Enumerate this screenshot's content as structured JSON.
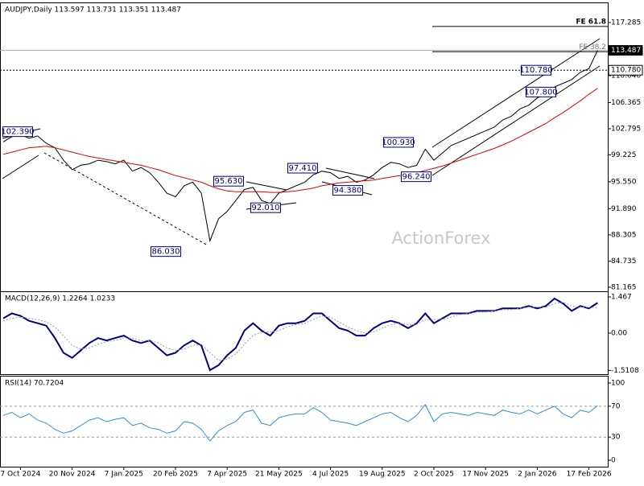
{
  "chart_data": [
    {
      "type": "line",
      "title": "AUDJPY,Daily 113.597 113.731 113.351 113.487",
      "watermark": "ActionForex",
      "ylim": [
        80.61,
        120.03
      ],
      "yticks": [
        117.285,
        {
          "value": 110.04,
          "label": "110.040"
        },
        106.365,
        102.795,
        99.225,
        {
          "value": 95.55,
          "label": "95.550"
        },
        {
          "value": 91.89,
          "label": "91.890"
        },
        88.305,
        84.735,
        81.165
      ],
      "price_labels": [
        {
          "value": 113.487,
          "label": "113.487",
          "line": "solid",
          "fill": "#000000"
        },
        {
          "value": 110.78,
          "label": "110.780",
          "line": "dashed",
          "fill": "#ffffff"
        }
      ],
      "levels": [
        {
          "value": 116.75,
          "label": "FE 61.8"
        },
        {
          "value": 113.3,
          "label": "FE 38.2"
        }
      ],
      "annotations": [
        {
          "value": 102.39,
          "label": "102.390"
        },
        {
          "value": 86.03,
          "label": "86.030"
        },
        {
          "value": 95.63,
          "label": "95.630"
        },
        {
          "value": 92.01,
          "label": "92.010"
        },
        {
          "value": 97.41,
          "label": "97.410"
        },
        {
          "value": 94.38,
          "label": "94.380"
        },
        {
          "value": 100.93,
          "label": "100.930"
        },
        {
          "value": 96.24,
          "label": "96.240"
        },
        {
          "value": 110.78,
          "label": "110.780"
        },
        {
          "value": 107.8,
          "label": "107.800"
        }
      ],
      "series": [
        {
          "color": "#000000",
          "width": 1,
          "values": [
            101.0,
            101.7,
            102.0,
            101.5,
            101.8,
            100.8,
            100.2,
            98.5,
            97.2,
            97.8,
            98.0,
            98.5,
            98.3,
            98.0,
            98.5,
            97.0,
            97.5,
            96.8,
            95.5,
            94.0,
            93.5,
            95.0,
            95.5,
            94.0,
            87.5,
            90.5,
            91.5,
            93.0,
            94.5,
            94.8,
            93.0,
            92.6,
            94.0,
            94.5,
            95.0,
            95.5,
            96.5,
            97.0,
            96.8,
            96.0,
            96.3,
            95.5,
            95.8,
            96.5,
            97.5,
            98.2,
            98.0,
            97.5,
            97.8,
            100.0,
            98.5,
            99.5,
            100.5,
            101.0,
            101.5,
            102.0,
            102.5,
            103.0,
            104.0,
            104.5,
            105.5,
            106.0,
            107.0,
            107.5,
            108.5,
            109.0,
            109.5,
            110.5,
            111.0,
            113.487
          ]
        },
        {
          "color": "#e00000",
          "width": 1,
          "values": [
            99.3,
            99.6,
            99.9,
            100.2,
            100.3,
            100.4,
            100.2,
            99.9,
            99.6,
            99.3,
            99.0,
            98.8,
            98.6,
            98.4,
            98.2,
            98.0,
            97.8,
            97.5,
            97.2,
            96.8,
            96.4,
            96.1,
            95.8,
            95.5,
            95.0,
            94.6,
            94.3,
            94.2,
            94.2,
            94.2,
            94.2,
            94.1,
            94.1,
            94.2,
            94.3,
            94.5,
            94.7,
            95.0,
            95.2,
            95.4,
            95.5,
            95.6,
            95.7,
            95.8,
            96.0,
            96.2,
            96.4,
            96.6,
            96.8,
            97.1,
            97.4,
            97.7,
            98.1,
            98.5,
            98.9,
            99.3,
            99.7,
            100.1,
            100.6,
            101.1,
            101.7,
            102.3,
            102.9,
            103.5,
            104.3,
            105.0,
            105.8,
            106.6,
            107.5,
            108.3
          ]
        }
      ]
    },
    {
      "type": "line",
      "title": "MACD(12,26,9) 1.2264 1.0233",
      "ylim": [
        -1.663,
        1.695
      ],
      "yticks": [
        1.467,
        {
          "value": 0,
          "label": "0.00"
        },
        -1.5108
      ],
      "series": [
        {
          "color": "#000080",
          "width": 2,
          "values": [
            0.6,
            0.8,
            0.7,
            0.5,
            0.4,
            0.3,
            -0.2,
            -0.8,
            -1.0,
            -0.7,
            -0.4,
            -0.2,
            -0.3,
            -0.2,
            -0.1,
            -0.3,
            -0.4,
            -0.3,
            -0.6,
            -0.9,
            -0.8,
            -0.5,
            -0.3,
            -0.5,
            -1.5,
            -1.3,
            -0.9,
            -0.6,
            0.1,
            0.4,
            0.1,
            -0.1,
            0.3,
            0.4,
            0.4,
            0.5,
            0.8,
            0.8,
            0.5,
            0.2,
            0.1,
            -0.1,
            -0.1,
            0.2,
            0.4,
            0.5,
            0.4,
            0.2,
            0.4,
            0.8,
            0.4,
            0.6,
            0.8,
            0.8,
            0.8,
            0.9,
            0.9,
            0.9,
            1.0,
            1.0,
            1.0,
            1.1,
            1.0,
            1.1,
            1.4,
            1.2,
            0.9,
            1.1,
            1.0,
            1.2264
          ]
        },
        {
          "color": "#9a9ab8",
          "width": 1,
          "dashed": true,
          "values": [
            0.5,
            0.6,
            0.65,
            0.6,
            0.55,
            0.45,
            0.25,
            -0.1,
            -0.5,
            -0.65,
            -0.6,
            -0.45,
            -0.35,
            -0.3,
            -0.2,
            -0.2,
            -0.3,
            -0.3,
            -0.4,
            -0.6,
            -0.7,
            -0.65,
            -0.5,
            -0.45,
            -0.8,
            -1.1,
            -1.05,
            -0.85,
            -0.45,
            -0.1,
            0.05,
            0.05,
            0.1,
            0.25,
            0.35,
            0.4,
            0.55,
            0.7,
            0.65,
            0.45,
            0.25,
            0.1,
            0,
            0.05,
            0.2,
            0.35,
            0.4,
            0.35,
            0.35,
            0.55,
            0.55,
            0.55,
            0.65,
            0.75,
            0.8,
            0.85,
            0.85,
            0.9,
            0.95,
            0.95,
            1.0,
            1.05,
            1.05,
            1.05,
            1.2,
            1.25,
            1.1,
            1.05,
            1.05,
            1.0233
          ]
        }
      ]
    },
    {
      "type": "line",
      "title": "RSI(14) 70.7204",
      "ylim": [
        -8.3,
        109.4
      ],
      "yticks": [
        100,
        70,
        30,
        0
      ],
      "grid_lines": [
        70,
        30
      ],
      "categories": [
        null,
        null,
        "7 Oct 2024",
        null,
        null,
        null,
        null,
        null,
        "20 Nov 2024",
        null,
        null,
        null,
        null,
        null,
        "7 Jan 2025",
        null,
        null,
        null,
        null,
        null,
        "20 Feb 2025",
        null,
        null,
        null,
        null,
        null,
        "7 Apr 2025",
        null,
        null,
        null,
        null,
        null,
        "21 May 2025",
        null,
        null,
        null,
        null,
        null,
        "4 Jul 2025",
        null,
        null,
        null,
        null,
        null,
        "19 Aug 2025",
        null,
        null,
        null,
        null,
        null,
        "2 Oct 2025",
        null,
        null,
        null,
        null,
        null,
        "17 Nov 2025",
        null,
        null,
        null,
        null,
        null,
        "2 Jan 2026",
        null,
        null,
        null,
        null,
        null,
        "17 Feb 2026",
        null
      ],
      "series": [
        {
          "color": "#2f8fd8",
          "width": 1,
          "values": [
            58,
            62,
            55,
            60,
            52,
            48,
            40,
            35,
            38,
            45,
            52,
            55,
            50,
            53,
            55,
            45,
            48,
            42,
            40,
            35,
            38,
            50,
            48,
            40,
            25,
            38,
            45,
            50,
            62,
            65,
            48,
            45,
            55,
            58,
            60,
            60,
            68,
            62,
            52,
            50,
            48,
            45,
            50,
            55,
            60,
            62,
            55,
            50,
            58,
            72,
            50,
            60,
            62,
            60,
            58,
            62,
            60,
            58,
            65,
            62,
            60,
            65,
            60,
            65,
            70,
            60,
            55,
            65,
            62,
            70.7204
          ]
        }
      ]
    }
  ]
}
